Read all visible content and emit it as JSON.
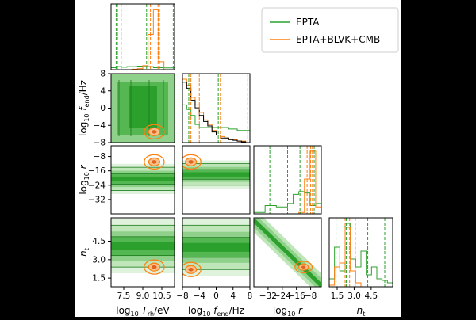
{
  "chart_data": {
    "type": "corner",
    "legend": {
      "placement": "top-right",
      "entries": [
        {
          "label": "EPTA",
          "color": "#2ca02c"
        },
        {
          "label": "EPTA+BLVK+CMB",
          "color": "#ff7f0e"
        }
      ]
    },
    "colors": {
      "epta": "#2ca02c",
      "combined": "#ff7f0e",
      "reference": "#000000"
    },
    "parameters": [
      {
        "axis_label": "log10 T_rh/eV",
        "axis_label_parts": [
          "log",
          "10",
          "T",
          "rh",
          "/eV"
        ],
        "range": [
          6.5,
          11.5
        ],
        "ticks": [
          7.5,
          9.0,
          10.5
        ],
        "tick_labels": [
          "7.5",
          "9.0",
          "10.5"
        ]
      },
      {
        "axis_label": "log10 f_end/Hz",
        "axis_label_parts": [
          "log",
          "10",
          "f",
          "end",
          "/Hz"
        ],
        "range": [
          -8,
          8
        ],
        "ticks": [
          -8,
          -4,
          0,
          4,
          8
        ],
        "tick_labels": [
          "−8",
          "−4",
          "0",
          "4",
          "8"
        ]
      },
      {
        "axis_label": "log10 r",
        "axis_label_parts": [
          "log",
          "10",
          "r"
        ],
        "range": [
          -40,
          -2
        ],
        "ticks": [
          -32,
          -24,
          -16,
          -8
        ],
        "tick_labels": [
          "−32",
          "−24",
          "−16",
          "−8"
        ]
      },
      {
        "axis_label": "n_t",
        "axis_label_parts": [
          "n",
          "t"
        ],
        "range": [
          0.8,
          6.4
        ],
        "ticks": [
          1.5,
          3.0,
          4.5
        ],
        "tick_labels": [
          "1.5",
          "3.0",
          "4.5"
        ]
      }
    ],
    "marginals": [
      {
        "parameter": 0,
        "epta_hist": [
          0.02,
          0.03,
          0.025,
          0.03,
          0.03,
          0.035,
          0.03,
          0.03,
          0.02,
          0.02,
          0.018,
          0.018
        ],
        "combined_hist": [
          0.0,
          0.0,
          0.0,
          0.0,
          0.005,
          0.01,
          0.04,
          0.35,
          0.6,
          0.08,
          0.0,
          0.0
        ],
        "epta_quantile_lines": [
          6.9,
          7.0,
          9.3,
          10.3,
          11.4
        ],
        "combined_quantile_lines": [
          7.3,
          9.6,
          10.2
        ]
      },
      {
        "parameter": 1,
        "epta_hist": [
          0.25,
          0.22,
          0.18,
          0.12,
          0.1,
          0.1,
          0.1,
          0.1,
          0.1,
          0.1,
          0.1,
          0.09,
          0.09,
          0.08,
          0.08,
          0.08
        ],
        "combined_hist": [
          0.42,
          0.38,
          0.3,
          0.25,
          0.2,
          0.15,
          0.12,
          0.08,
          0.05,
          0.04,
          0.03,
          0.02,
          0.02,
          0.01,
          0.01,
          0.0
        ],
        "reference_hist": [
          0.4,
          0.36,
          0.28,
          0.23,
          0.18,
          0.14,
          0.11,
          0.07,
          0.05,
          0.03,
          0.03,
          0.02,
          0.015,
          0.01,
          0.005,
          0.0
        ],
        "epta_quantile_lines": [
          -6.5,
          0.5,
          7.5
        ],
        "combined_quantile_lines": [
          -6.0,
          -4.0,
          1.0
        ]
      },
      {
        "parameter": 2,
        "epta_hist": [
          0.02,
          0.02,
          0.12,
          0.12,
          0.1,
          0.1,
          0.15,
          0.28,
          0.32,
          0.3,
          0.12,
          0.15
        ],
        "combined_hist": [
          0.0,
          0.0,
          0.0,
          0.0,
          0.0,
          0.0,
          0.0,
          0.0,
          0.02,
          0.5,
          0.9,
          0.1
        ],
        "epta_quantile_lines": [
          -31,
          -21,
          -14,
          -6
        ],
        "combined_quantile_lines": [
          -10,
          -8,
          -7
        ]
      },
      {
        "parameter": 3,
        "epta_hist": [
          0.1,
          0.5,
          0.2,
          0.8,
          0.35,
          0.25,
          0.45,
          0.15,
          0.25,
          0.1,
          0.08,
          0.05
        ],
        "combined_hist": [
          0.02,
          0.25,
          0.3,
          0.75,
          0.2,
          0.05,
          0.0,
          0.0,
          0.0,
          0.0,
          0.0,
          0.0
        ],
        "epta_quantile_lines": [
          1.4,
          2.3,
          4.2,
          5.7
        ],
        "combined_quantile_lines": [
          2.2,
          2.6,
          3.1
        ]
      }
    ],
    "joint_densities": [
      {
        "x": 0,
        "y": 1,
        "epta_region": {
          "x": [
            6.5,
            11.5
          ],
          "y": [
            -8,
            8
          ]
        },
        "combined_center": [
          9.9,
          -5.5
        ]
      },
      {
        "x": 0,
        "y": 2,
        "epta_band_y": [
          -27,
          -14
        ],
        "combined_center": [
          9.9,
          -11
        ]
      },
      {
        "x": 1,
        "y": 2,
        "epta_band_y": [
          -24,
          -12
        ],
        "combined_center": [
          -6.0,
          -11
        ]
      },
      {
        "x": 0,
        "y": 3,
        "epta_band_y": [
          2.4,
          5.8
        ],
        "combined_center": [
          9.9,
          2.4
        ]
      },
      {
        "x": 1,
        "y": 3,
        "epta_band_y": [
          2.2,
          5.8
        ],
        "combined_center": [
          -6.0,
          2.2
        ]
      },
      {
        "x": 2,
        "y": 3,
        "relation": "nt decreases linearly with log10 r",
        "combined_center": [
          -12,
          2.4
        ]
      }
    ]
  }
}
